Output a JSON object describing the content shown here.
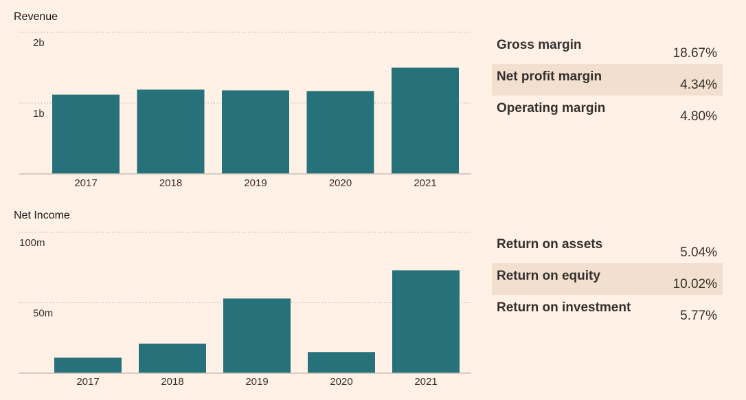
{
  "colors": {
    "background": "#fff1e5",
    "bar": "#26717a",
    "shaded_row": "#f2dfce"
  },
  "chart_data": [
    {
      "type": "bar",
      "title": "Revenue",
      "categories": [
        "2017",
        "2018",
        "2019",
        "2020",
        "2021"
      ],
      "values": [
        1.12,
        1.19,
        1.18,
        1.17,
        1.5
      ],
      "unit": "billions",
      "yticks": [
        {
          "value": 1,
          "label": "1b"
        },
        {
          "value": 2,
          "label": "2b"
        }
      ],
      "ylim": [
        0,
        2
      ],
      "xlabel": "",
      "ylabel": "",
      "grid": true
    },
    {
      "type": "bar",
      "title": "Net Income",
      "categories": [
        "2017",
        "2018",
        "2019",
        "2020",
        "2021"
      ],
      "values": [
        11,
        21,
        53,
        15,
        73
      ],
      "unit": "millions",
      "yticks": [
        {
          "value": 50,
          "label": "50m"
        },
        {
          "value": 100,
          "label": "100m"
        }
      ],
      "ylim": [
        0,
        100
      ],
      "xlabel": "",
      "ylabel": "",
      "grid": true
    }
  ],
  "ratios_top": [
    {
      "label": "Gross margin",
      "value": "18.67%",
      "shaded": false
    },
    {
      "label": "Net profit margin",
      "value": "4.34%",
      "shaded": true
    },
    {
      "label": "Operating margin",
      "value": "4.80%",
      "shaded": false
    }
  ],
  "ratios_bottom": [
    {
      "label": "Return on assets",
      "value": "5.04%",
      "shaded": false
    },
    {
      "label": "Return on equity",
      "value": "10.02%",
      "shaded": true
    },
    {
      "label": "Return on investment",
      "value": "5.77%",
      "shaded": false
    }
  ]
}
